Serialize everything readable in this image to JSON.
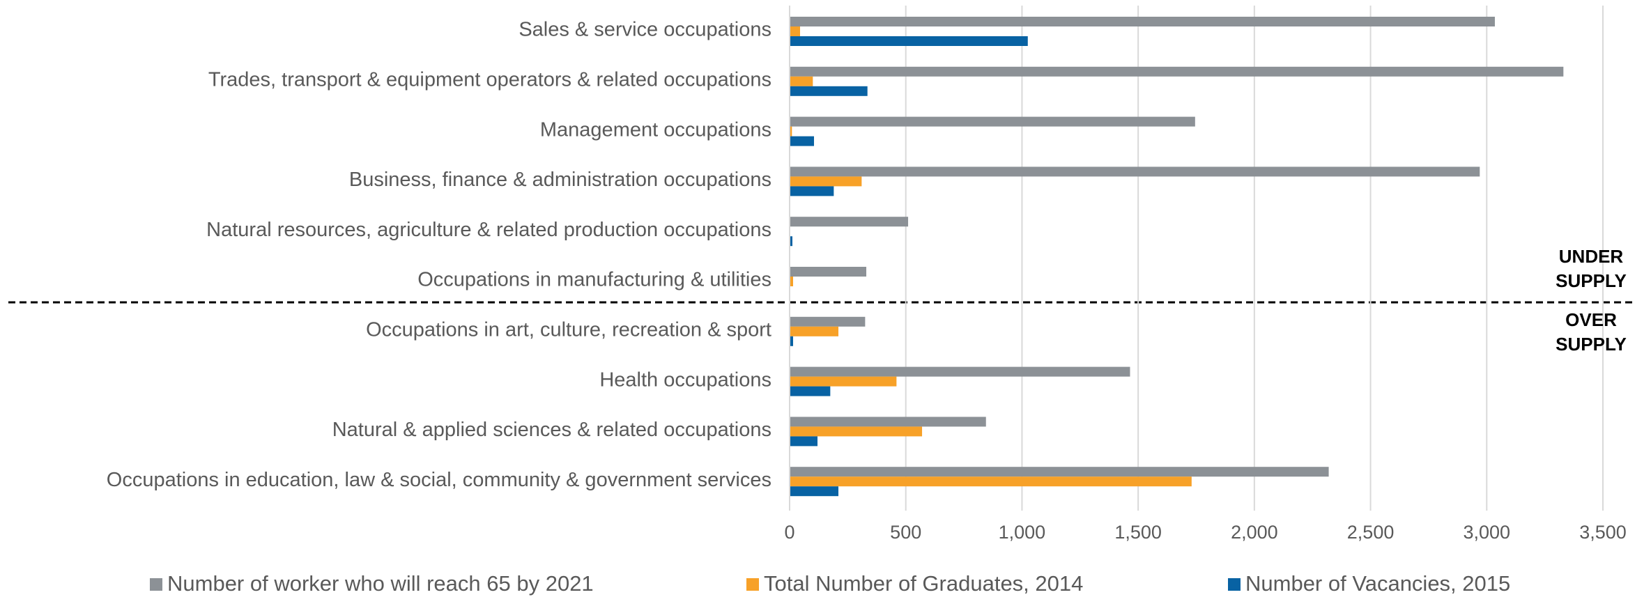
{
  "chart_data": {
    "type": "barh",
    "categories": [
      "Sales & service occupations",
      "Trades, transport & equipment operators & related occupations",
      "Management occupations",
      "Business, finance & administration occupations",
      "Natural resources, agriculture & related production occupations",
      "Occupations in manufacturing & utilities",
      "Occupations in art, culture, recreation & sport",
      "Health occupations",
      "Natural & applied sciences & related occupations",
      "Occupations in education, law & social, community & government services"
    ],
    "series": [
      {
        "name": "Number of worker who will reach 65 by 2021",
        "color": "#8c9196",
        "values": [
          3035,
          3330,
          1745,
          2970,
          510,
          330,
          325,
          1465,
          845,
          2320
        ]
      },
      {
        "name": "Total Number of Graduates, 2014",
        "color": "#f7a128",
        "values": [
          45,
          100,
          10,
          310,
          0,
          15,
          210,
          460,
          570,
          1730
        ]
      },
      {
        "name": "Number of Vacancies, 2015",
        "color": "#0862a3",
        "values": [
          1025,
          335,
          105,
          190,
          12,
          0,
          15,
          175,
          120,
          210
        ]
      }
    ],
    "xlim": [
      0,
      3500
    ],
    "xticks": [
      0,
      500,
      {
        "value": 1000,
        "label": "1,000"
      },
      {
        "value": 1500,
        "label": "1,500"
      },
      {
        "value": 2000,
        "label": "2,000"
      },
      {
        "value": 2500,
        "label": "2,500"
      },
      {
        "value": 3000,
        "label": "3,000"
      },
      {
        "value": 3500,
        "label": "3,500"
      }
    ],
    "grid": true,
    "legend": "bottom",
    "annotations": [
      {
        "lines": [
          "UNDER",
          "SUPPLY"
        ]
      },
      {
        "lines": [
          "OVER",
          "SUPPLY"
        ]
      }
    ]
  }
}
